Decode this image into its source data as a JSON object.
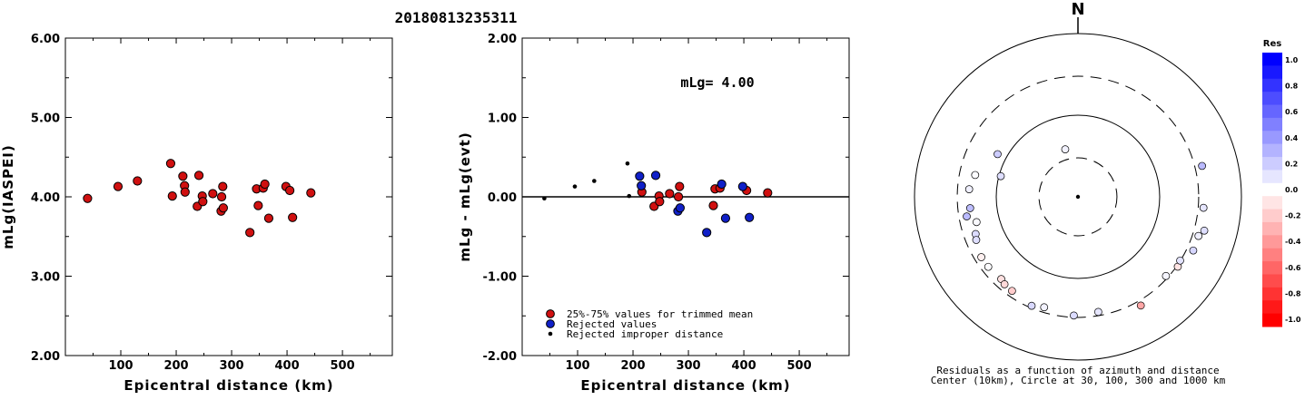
{
  "title": "20180813235311",
  "chart_data": [
    {
      "type": "scatter",
      "ylabel": "mLg(IASPEI)",
      "xlabel": "Epicentral distance (km)",
      "xlim": [
        0,
        590
      ],
      "ylim": [
        2.0,
        6.0
      ],
      "xticks": [
        "100",
        "200",
        "300",
        "400",
        "500"
      ],
      "yticks": [
        "2.00",
        "3.00",
        "4.00",
        "5.00",
        "6.00"
      ],
      "series": [
        {
          "color": "#d01010",
          "points": [
            [
              40,
              3.98
            ],
            [
              95,
              4.13
            ],
            [
              130,
              4.2
            ],
            [
              190,
              4.42
            ],
            [
              193,
              4.01
            ],
            [
              212,
              4.26
            ],
            [
              215,
              4.14
            ],
            [
              216,
              4.06
            ],
            [
              238,
              3.88
            ],
            [
              241,
              4.27
            ],
            [
              247,
              4.01
            ],
            [
              248,
              3.94
            ],
            [
              266,
              4.04
            ],
            [
              281,
              3.82
            ],
            [
              282,
              4.0
            ],
            [
              284,
              4.13
            ],
            [
              285,
              3.86
            ],
            [
              333,
              3.55
            ],
            [
              345,
              4.1
            ],
            [
              348,
              3.89
            ],
            [
              357,
              4.11
            ],
            [
              360,
              4.16
            ],
            [
              367,
              3.73
            ],
            [
              398,
              4.13
            ],
            [
              405,
              4.08
            ],
            [
              410,
              3.74
            ],
            [
              443,
              4.05
            ]
          ]
        }
      ]
    },
    {
      "type": "scatter",
      "ylabel": "mLg - mLg(evt)",
      "xlabel": "Epicentral distance (km)",
      "annotation": "mLg= 4.00",
      "xlim": [
        0,
        590
      ],
      "ylim": [
        -2.0,
        2.0
      ],
      "xticks": [
        "100",
        "200",
        "300",
        "400",
        "500"
      ],
      "yticks": [
        "-2.00",
        "-1.00",
        "0.00",
        "1.00",
        "2.00"
      ],
      "legend": {
        "placement": "bottom-left",
        "entries": [
          "25%-75% values for trimmed mean",
          "Rejected values",
          "Rejected improper distance"
        ]
      },
      "series": [
        {
          "name": "25%-75% values for trimmed mean",
          "color": "#d01010",
          "points": [
            [
              216,
              0.06
            ],
            [
              238,
              -0.12
            ],
            [
              247,
              0.01
            ],
            [
              248,
              -0.06
            ],
            [
              266,
              0.04
            ],
            [
              282,
              0.0
            ],
            [
              284,
              0.13
            ],
            [
              345,
              -0.11
            ],
            [
              348,
              0.1
            ],
            [
              357,
              0.11
            ],
            [
              405,
              0.08
            ],
            [
              443,
              0.05
            ]
          ]
        },
        {
          "name": "Rejected values",
          "color": "#1020c8",
          "points": [
            [
              212,
              0.26
            ],
            [
              215,
              0.14
            ],
            [
              241,
              0.27
            ],
            [
              281,
              -0.18
            ],
            [
              285,
              -0.14
            ],
            [
              333,
              -0.45
            ],
            [
              360,
              0.16
            ],
            [
              367,
              -0.27
            ],
            [
              398,
              0.13
            ],
            [
              410,
              -0.26
            ]
          ]
        },
        {
          "name": "Rejected improper distance",
          "color": "#000000",
          "points": [
            [
              40,
              -0.02
            ],
            [
              95,
              0.13
            ],
            [
              130,
              0.2
            ],
            [
              190,
              0.42
            ],
            [
              193,
              0.01
            ]
          ]
        }
      ]
    },
    {
      "type": "polar-scatter",
      "north_label": "N",
      "caption": [
        "Residuals as a function of azimuth and distance",
        "Center (10km), Circle at 30, 100, 300 and 1000 km"
      ],
      "colorbar": {
        "title": "Res",
        "labels": [
          "1.0",
          "0.8",
          "0.6",
          "0.4",
          "0.2",
          "0.0",
          "-0.2",
          "-0.4",
          "-0.6",
          "-0.8",
          "-1.0"
        ],
        "max_color": "#0000ff",
        "zero_color": "#ffffff",
        "min_color": "#ff0000"
      },
      "points": [
        {
          "az": -15,
          "dist": 40,
          "res": 0.05
        },
        {
          "az": -62,
          "dist": 130,
          "res": 0.2
        },
        {
          "az": -75,
          "dist": 95,
          "res": 0.13
        },
        {
          "az": -78,
          "dist": 193,
          "res": 0.01
        },
        {
          "az": -86,
          "dist": 216,
          "res": 0.06
        },
        {
          "az": -96,
          "dist": 212,
          "res": 0.26
        },
        {
          "az": -100,
          "dist": 241,
          "res": 0.27
        },
        {
          "az": -104,
          "dist": 190,
          "res": 0.02
        },
        {
          "az": -110,
          "dist": 215,
          "res": 0.14
        },
        {
          "az": -113,
          "dist": 225,
          "res": 0.13
        },
        {
          "az": -122,
          "dist": 248,
          "res": -0.06
        },
        {
          "az": -128,
          "dist": 247,
          "res": 0.01
        },
        {
          "az": -137,
          "dist": 238,
          "res": -0.12
        },
        {
          "az": -140,
          "dist": 250,
          "res": -0.15
        },
        {
          "az": -145,
          "dist": 255,
          "res": -0.2
        },
        {
          "az": -157,
          "dist": 282,
          "res": 0.15
        },
        {
          "az": -163,
          "dist": 260,
          "res": 0.05
        },
        {
          "az": -178,
          "dist": 285,
          "res": 0.14
        },
        {
          "az": 170,
          "dist": 270,
          "res": 0.1
        },
        {
          "az": 150,
          "dist": 345,
          "res": -0.35
        },
        {
          "az": 132,
          "dist": 281,
          "res": 0.04
        },
        {
          "az": 125,
          "dist": 310,
          "res": -0.11
        },
        {
          "az": 122,
          "dist": 298,
          "res": 0.11
        },
        {
          "az": 115,
          "dist": 360,
          "res": 0.16
        },
        {
          "az": 108,
          "dist": 355,
          "res": 0.06
        },
        {
          "az": 105,
          "dist": 398,
          "res": 0.13
        },
        {
          "az": 95,
          "dist": 348,
          "res": 0.1
        },
        {
          "az": 76,
          "dist": 367,
          "res": 0.27
        }
      ]
    }
  ]
}
